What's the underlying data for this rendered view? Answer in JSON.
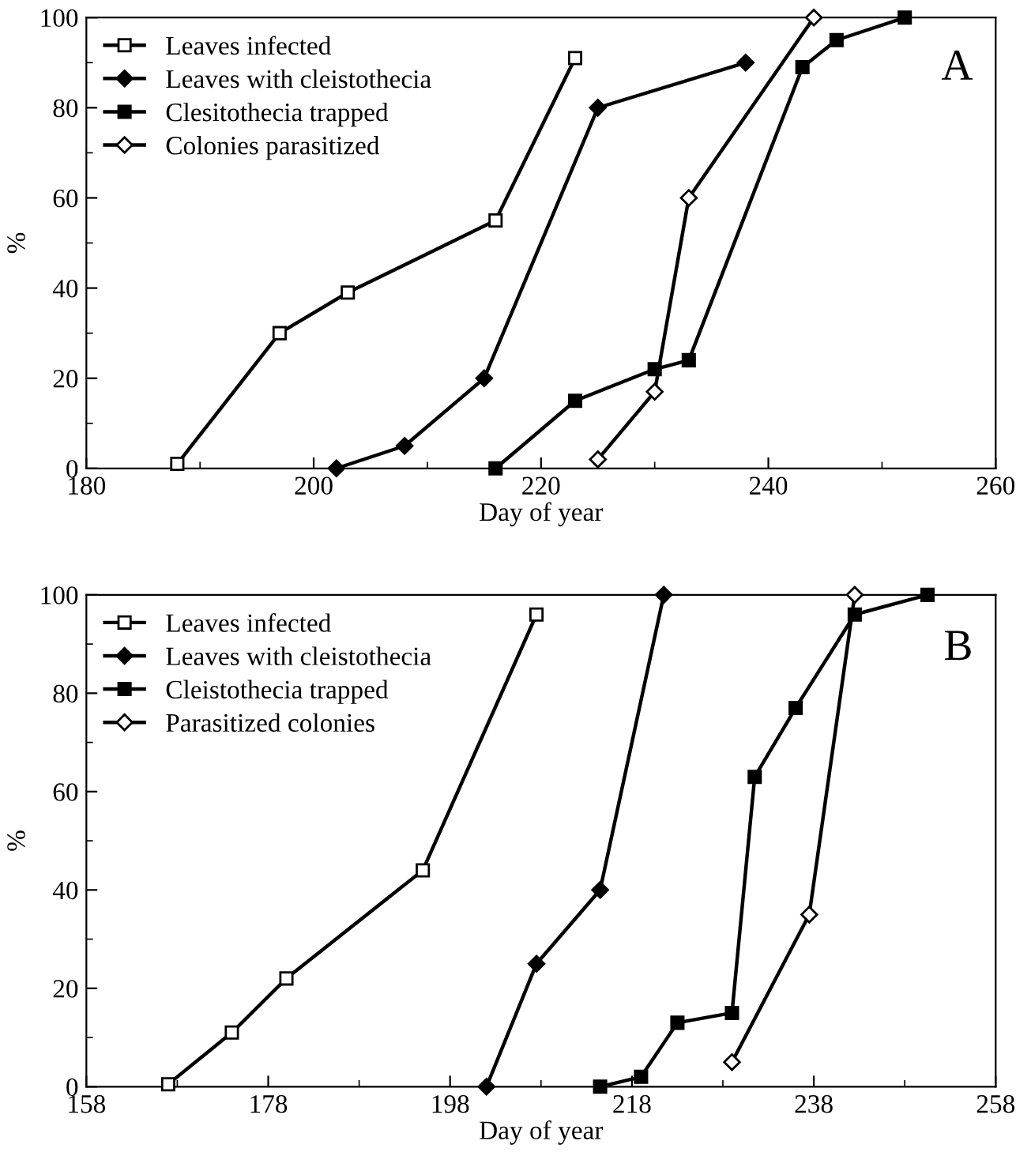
{
  "chart_data": [
    {
      "type": "line",
      "xlabel": "Day of year",
      "ylabel": "%",
      "annotations": [
        "A"
      ],
      "xlim": [
        180,
        260
      ],
      "xticks": [
        180,
        200,
        220,
        240,
        260
      ],
      "ylim": [
        0,
        100
      ],
      "yticks": [
        0,
        20,
        40,
        60,
        80,
        100
      ],
      "grid": false,
      "legend": "top left",
      "line_style": "solid",
      "series": [
        {
          "name": "Leaves infected",
          "color": "#000000",
          "marker": "square",
          "x": [
            188,
            197,
            203,
            216,
            223
          ],
          "values": [
            1,
            30,
            39,
            55,
            91
          ]
        },
        {
          "name": "Leaves with cleistothecia",
          "color": "#000000",
          "marker": "diamond",
          "x": [
            202,
            208,
            215,
            225,
            238
          ],
          "values": [
            0,
            5,
            20,
            80,
            90
          ]
        },
        {
          "name": "Clesitothecia trapped",
          "color": "#000000",
          "marker": "square",
          "x": [
            216,
            223,
            230,
            233,
            243,
            246,
            252
          ],
          "values": [
            0,
            15,
            22,
            24,
            89,
            95,
            100
          ]
        },
        {
          "name": "Colonies parasitized",
          "color": "#000000",
          "marker": "diamond",
          "x": [
            225,
            230,
            233,
            244
          ],
          "values": [
            2,
            17,
            60,
            100
          ]
        }
      ]
    },
    {
      "type": "line",
      "xlabel": "Day of year",
      "ylabel": "%",
      "annotations": [
        "B"
      ],
      "xlim": [
        158,
        258
      ],
      "xticks": [
        158,
        178,
        198,
        218,
        238,
        258
      ],
      "ylim": [
        0,
        100
      ],
      "yticks": [
        0,
        20,
        40,
        60,
        80,
        100
      ],
      "grid": false,
      "legend": "top left",
      "line_style": "solid",
      "series": [
        {
          "name": "Leaves infected",
          "color": "#000000",
          "marker": "square",
          "x": [
            167,
            174,
            180,
            195,
            207.5
          ],
          "values": [
            0.5,
            11,
            22,
            44,
            96
          ]
        },
        {
          "name": "Leaves with cleistothecia",
          "color": "#000000",
          "marker": "diamond",
          "x": [
            202,
            207.5,
            214.5,
            221.5
          ],
          "values": [
            0,
            25,
            40,
            100
          ]
        },
        {
          "name": "Cleistothecia trapped",
          "color": "#000000",
          "marker": "square",
          "x": [
            214.5,
            219,
            223,
            229,
            231.5,
            236,
            242.5,
            250.5
          ],
          "values": [
            0,
            2,
            13,
            15,
            63,
            77,
            96,
            100
          ]
        },
        {
          "name": "Parasitized colonies",
          "color": "#000000",
          "marker": "diamond",
          "x": [
            229,
            237.5,
            242.5
          ],
          "values": [
            5,
            35,
            100
          ]
        }
      ]
    }
  ]
}
